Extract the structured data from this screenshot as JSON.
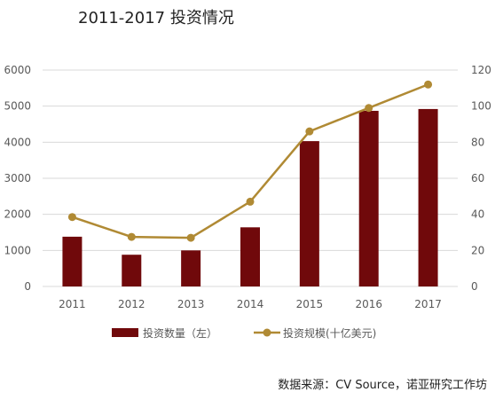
{
  "title": "2011-2017 投资情况",
  "source": "数据来源：CV Source，诺亚研究工作坊",
  "colors": {
    "bar": "#70090b",
    "line": "#b08a34",
    "axis_text": "#595959",
    "grid": "#d9d9d9"
  },
  "chart_data": {
    "type": "bar",
    "categories": [
      "2011",
      "2012",
      "2013",
      "2014",
      "2015",
      "2016",
      "2017"
    ],
    "series": [
      {
        "name": "投资数量（左）",
        "type": "bar",
        "axis": "left",
        "values": [
          1380,
          880,
          1000,
          1640,
          4030,
          4870,
          4920
        ]
      },
      {
        "name": "投资规模(十亿美元)",
        "type": "line",
        "axis": "right",
        "values": [
          38.5,
          27.5,
          27,
          47,
          86,
          99,
          112
        ]
      }
    ],
    "y_left": {
      "lim": [
        0,
        6000
      ],
      "ticks": [
        "0",
        "1000",
        "2000",
        "3000",
        "4000",
        "5000",
        "6000"
      ]
    },
    "y_right": {
      "lim": [
        0,
        120
      ],
      "ticks": [
        "0",
        "20",
        "40",
        "60",
        "80",
        "100",
        "120"
      ]
    },
    "grid": true,
    "legend_position": "bottom"
  }
}
